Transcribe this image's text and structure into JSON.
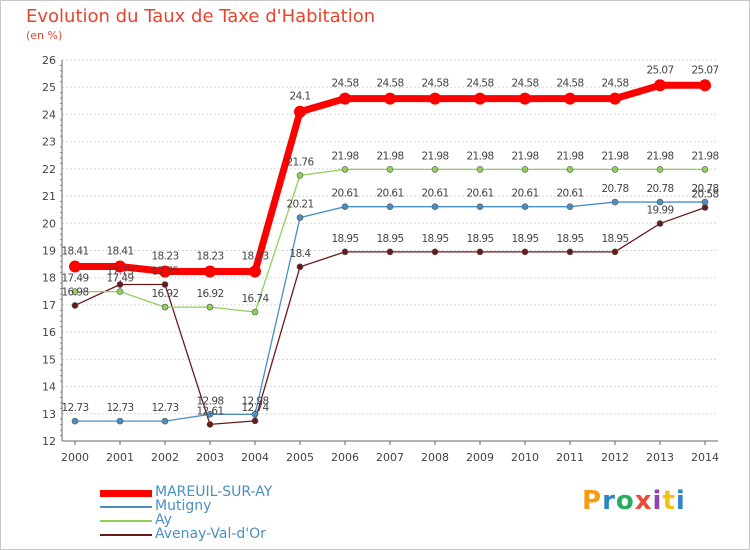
{
  "title": "Evolution du Taux de Taxe d'Habitation",
  "unit": "(en %)",
  "logo": {
    "letters": [
      "P",
      "r",
      "o",
      "x",
      "i",
      "t",
      "i"
    ],
    "colors": [
      "#f39c12",
      "#2e86c1",
      "#27ae60",
      "#e74c3c",
      "#8e44ad",
      "#f1c40f",
      "#2e86c1"
    ]
  },
  "chart_data": {
    "type": "line",
    "x": [
      "2000",
      "2001",
      "2002",
      "2003",
      "2004",
      "2005",
      "2006",
      "2007",
      "2008",
      "2009",
      "2010",
      "2011",
      "2012",
      "2013",
      "2014"
    ],
    "ylim": [
      12,
      26
    ],
    "yticks": [
      "12",
      "13",
      "14",
      "15",
      "16",
      "17",
      "18",
      "19",
      "20",
      "21",
      "22",
      "23",
      "24",
      "25",
      "26"
    ],
    "grid": "horizontal",
    "legend_position": "bottom-left",
    "series": [
      {
        "name": "MAREUIL-SUR-AY",
        "color": "#ff0000",
        "values": [
          18.41,
          18.41,
          18.23,
          18.23,
          18.23,
          24.1,
          24.58,
          24.58,
          24.58,
          24.58,
          24.58,
          24.58,
          24.58,
          25.07,
          25.07
        ],
        "labels": [
          "18.41",
          "18.41",
          "18.23",
          "18.23",
          "18.23",
          "24.1",
          "24.58",
          "24.58",
          "24.58",
          "24.58",
          "24.58",
          "24.58",
          "24.58",
          "25.07",
          "25.07"
        ]
      },
      {
        "name": "Mutigny",
        "color": "#4a8fc2",
        "values": [
          12.73,
          12.73,
          12.73,
          12.98,
          12.98,
          20.21,
          20.61,
          20.61,
          20.61,
          20.61,
          20.61,
          20.61,
          20.78,
          20.78,
          20.78
        ],
        "labels": [
          "12.73",
          "12.73",
          "12.73",
          "12.98",
          "12.98",
          "20.21",
          "20.61",
          "20.61",
          "20.61",
          "20.61",
          "20.61",
          "20.61",
          "20.78",
          "20.78",
          "20.78"
        ]
      },
      {
        "name": "Ay",
        "color": "#8fd25a",
        "values": [
          17.49,
          17.49,
          16.92,
          16.92,
          16.74,
          21.76,
          21.98,
          21.98,
          21.98,
          21.98,
          21.98,
          21.98,
          21.98,
          21.98,
          21.98
        ],
        "labels": [
          "17.49",
          "17.49",
          "16.92",
          "16.92",
          "16.74",
          "21.76",
          "21.98",
          "21.98",
          "21.98",
          "21.98",
          "21.98",
          "21.98",
          "21.98",
          "21.98",
          "21.98"
        ]
      },
      {
        "name": "Avenay-Val-d'Or",
        "color": "#6b1a1a",
        "values": [
          16.98,
          17.75,
          17.75,
          12.61,
          12.74,
          18.4,
          18.95,
          18.95,
          18.95,
          18.95,
          18.95,
          18.95,
          18.95,
          19.99,
          20.58
        ],
        "labels": [
          "16.98",
          "17.75",
          "17.75",
          "12.61",
          "12.74",
          "18.4",
          "18.95",
          "18.95",
          "18.95",
          "18.95",
          "18.95",
          "18.95",
          "18.95",
          "19.99",
          "20.58"
        ]
      }
    ]
  }
}
